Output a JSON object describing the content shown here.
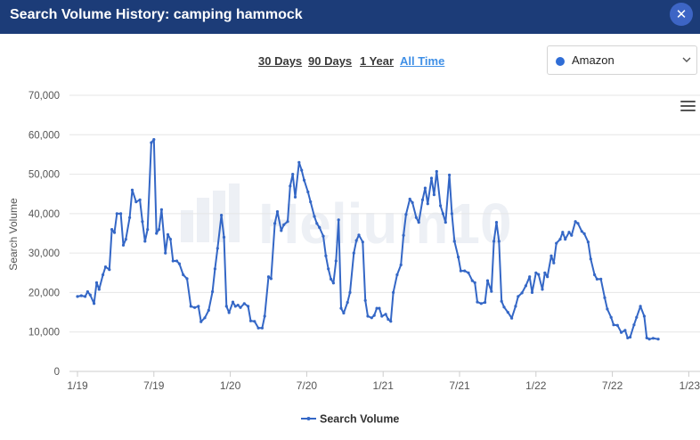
{
  "header": {
    "title": "Search Volume History: camping hammock",
    "close_icon": "close-icon",
    "color": "#1c3c78"
  },
  "range_buttons": [
    {
      "label": "30 Days",
      "active": false
    },
    {
      "label": "90 Days",
      "active": false
    },
    {
      "label": "1 Year",
      "active": false
    },
    {
      "label": "All Time",
      "active": true
    }
  ],
  "market_select": {
    "value": "Amazon",
    "dot_color": "#2f6dd6",
    "icon": "chevron-down-icon"
  },
  "menu_icon": "hamburger-menu-icon",
  "watermark": "Helium10",
  "chart_data": {
    "type": "line",
    "title": "",
    "xlabel": "",
    "ylabel": "Search Volume",
    "ylim": [
      0,
      70000
    ],
    "yticks": [
      0,
      10000,
      20000,
      30000,
      40000,
      50000,
      60000,
      70000
    ],
    "ytick_labels": [
      "0",
      "10,000",
      "20,000",
      "30,000",
      "40,000",
      "50,000",
      "60,000",
      "70,000"
    ],
    "xtick_labels": [
      "1/19",
      "7/19",
      "1/20",
      "7/20",
      "1/21",
      "7/21",
      "1/22",
      "7/22",
      "1/23"
    ],
    "grid": true,
    "legend_position": "bottom-center",
    "series": [
      {
        "name": "Search Volume",
        "color": "#3467c6",
        "x_unit": "months since Jan 2019",
        "points": [
          [
            0.0,
            19000
          ],
          [
            0.3,
            19200
          ],
          [
            0.6,
            19000
          ],
          [
            0.8,
            20200
          ],
          [
            1.0,
            19400
          ],
          [
            1.3,
            17200
          ],
          [
            1.5,
            22500
          ],
          [
            1.7,
            20800
          ],
          [
            2.0,
            24500
          ],
          [
            2.2,
            26500
          ],
          [
            2.5,
            25800
          ],
          [
            2.7,
            36000
          ],
          [
            2.9,
            35200
          ],
          [
            3.1,
            40000
          ],
          [
            3.4,
            40000
          ],
          [
            3.6,
            32000
          ],
          [
            3.8,
            33500
          ],
          [
            4.1,
            39000
          ],
          [
            4.3,
            46000
          ],
          [
            4.6,
            43000
          ],
          [
            4.9,
            43500
          ],
          [
            5.1,
            38000
          ],
          [
            5.3,
            33000
          ],
          [
            5.5,
            36000
          ],
          [
            5.8,
            58000
          ],
          [
            6.0,
            58800
          ],
          [
            6.2,
            35000
          ],
          [
            6.4,
            36000
          ],
          [
            6.6,
            41000
          ],
          [
            6.9,
            30000
          ],
          [
            7.1,
            34700
          ],
          [
            7.3,
            33500
          ],
          [
            7.5,
            28000
          ],
          [
            7.8,
            28000
          ],
          [
            8.0,
            27300
          ],
          [
            8.3,
            24500
          ],
          [
            8.6,
            23500
          ],
          [
            8.9,
            16500
          ],
          [
            9.2,
            16200
          ],
          [
            9.5,
            16500
          ],
          [
            9.7,
            12600
          ],
          [
            10.0,
            13600
          ],
          [
            10.3,
            15500
          ],
          [
            10.6,
            20200
          ],
          [
            10.8,
            26000
          ],
          [
            11.0,
            31200
          ],
          [
            11.3,
            39600
          ],
          [
            11.5,
            34000
          ],
          [
            11.7,
            16500
          ],
          [
            11.9,
            14900
          ],
          [
            12.2,
            17600
          ],
          [
            12.4,
            16500
          ],
          [
            12.6,
            16800
          ],
          [
            12.8,
            16200
          ],
          [
            13.1,
            17200
          ],
          [
            13.4,
            16500
          ],
          [
            13.6,
            12800
          ],
          [
            13.9,
            12700
          ],
          [
            14.2,
            11000
          ],
          [
            14.5,
            11000
          ],
          [
            14.7,
            14000
          ],
          [
            15.0,
            24000
          ],
          [
            15.2,
            23500
          ],
          [
            15.5,
            37500
          ],
          [
            15.7,
            40500
          ],
          [
            16.0,
            35700
          ],
          [
            16.2,
            37200
          ],
          [
            16.5,
            38000
          ],
          [
            16.7,
            47000
          ],
          [
            16.9,
            50000
          ],
          [
            17.1,
            44200
          ],
          [
            17.4,
            53000
          ],
          [
            17.6,
            51000
          ],
          [
            17.8,
            48500
          ],
          [
            18.1,
            45500
          ],
          [
            18.3,
            43000
          ],
          [
            18.6,
            39300
          ],
          [
            18.8,
            37500
          ],
          [
            19.0,
            36500
          ],
          [
            19.3,
            34300
          ],
          [
            19.5,
            29300
          ],
          [
            19.7,
            26000
          ],
          [
            19.9,
            23400
          ],
          [
            20.1,
            22400
          ],
          [
            20.3,
            28000
          ],
          [
            20.5,
            38400
          ],
          [
            20.7,
            16000
          ],
          [
            20.9,
            14800
          ],
          [
            21.2,
            17500
          ],
          [
            21.4,
            20000
          ],
          [
            21.7,
            30000
          ],
          [
            21.9,
            33200
          ],
          [
            22.1,
            34600
          ],
          [
            22.4,
            32800
          ],
          [
            22.6,
            18000
          ],
          [
            22.8,
            14000
          ],
          [
            23.1,
            13600
          ],
          [
            23.3,
            14200
          ],
          [
            23.5,
            16000
          ],
          [
            23.7,
            16000
          ],
          [
            23.9,
            14000
          ],
          [
            24.2,
            14500
          ],
          [
            24.4,
            13200
          ],
          [
            24.6,
            12700
          ],
          [
            24.8,
            20000
          ],
          [
            25.1,
            24500
          ],
          [
            25.4,
            27000
          ],
          [
            25.6,
            34500
          ],
          [
            25.8,
            39800
          ],
          [
            26.1,
            43700
          ],
          [
            26.3,
            42800
          ],
          [
            26.6,
            39000
          ],
          [
            26.8,
            37800
          ],
          [
            27.1,
            43500
          ],
          [
            27.3,
            46500
          ],
          [
            27.5,
            42500
          ],
          [
            27.8,
            49000
          ],
          [
            28.0,
            44800
          ],
          [
            28.2,
            50700
          ],
          [
            28.5,
            42000
          ],
          [
            28.7,
            40000
          ],
          [
            28.9,
            37800
          ],
          [
            29.2,
            49800
          ],
          [
            29.4,
            40000
          ],
          [
            29.6,
            33000
          ],
          [
            29.9,
            29000
          ],
          [
            30.1,
            25500
          ],
          [
            30.4,
            25500
          ],
          [
            30.7,
            25000
          ],
          [
            31.0,
            23000
          ],
          [
            31.2,
            22500
          ],
          [
            31.4,
            17600
          ],
          [
            31.7,
            17200
          ],
          [
            32.0,
            17500
          ],
          [
            32.2,
            23000
          ],
          [
            32.5,
            20300
          ],
          [
            32.7,
            33000
          ],
          [
            32.9,
            37800
          ],
          [
            33.1,
            33000
          ],
          [
            33.3,
            17800
          ],
          [
            33.5,
            16300
          ],
          [
            33.8,
            15000
          ],
          [
            34.1,
            13500
          ],
          [
            34.4,
            16500
          ],
          [
            34.6,
            19000
          ],
          [
            34.9,
            19900
          ],
          [
            35.2,
            21700
          ],
          [
            35.5,
            24000
          ],
          [
            35.7,
            20000
          ],
          [
            36.0,
            25000
          ],
          [
            36.2,
            24600
          ],
          [
            36.5,
            20800
          ],
          [
            36.7,
            25000
          ],
          [
            36.9,
            24000
          ],
          [
            37.2,
            29300
          ],
          [
            37.4,
            27500
          ],
          [
            37.6,
            32500
          ],
          [
            37.9,
            33500
          ],
          [
            38.1,
            35300
          ],
          [
            38.3,
            33500
          ],
          [
            38.6,
            35300
          ],
          [
            38.8,
            34500
          ],
          [
            39.1,
            38000
          ],
          [
            39.3,
            37500
          ],
          [
            39.6,
            35500
          ],
          [
            39.8,
            34900
          ],
          [
            40.1,
            32800
          ],
          [
            40.3,
            28500
          ],
          [
            40.6,
            24500
          ],
          [
            40.8,
            23400
          ],
          [
            41.1,
            23400
          ],
          [
            41.4,
            18700
          ],
          [
            41.6,
            15800
          ],
          [
            41.9,
            13700
          ],
          [
            42.1,
            11800
          ],
          [
            42.4,
            11700
          ],
          [
            42.7,
            9900
          ],
          [
            43.0,
            10400
          ],
          [
            43.2,
            8500
          ],
          [
            43.4,
            8700
          ],
          [
            43.7,
            11800
          ],
          [
            43.9,
            13700
          ],
          [
            44.2,
            16500
          ],
          [
            44.5,
            14000
          ],
          [
            44.7,
            8500
          ],
          [
            44.9,
            8200
          ],
          [
            45.2,
            8400
          ],
          [
            45.6,
            8200
          ]
        ]
      }
    ]
  }
}
